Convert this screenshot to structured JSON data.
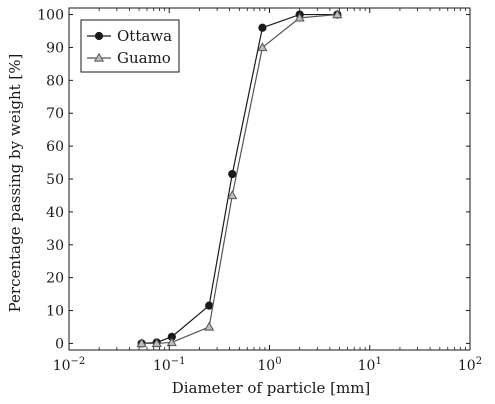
{
  "chart_data": {
    "type": "line",
    "xlabel": "Diameter of particle [mm]",
    "ylabel": "Percentage passing by weight [%]",
    "xscale": "log",
    "xlim": [
      0.01,
      100
    ],
    "ylim": [
      -2,
      102
    ],
    "x_ticks": [
      {
        "value": 0.01,
        "base": "10",
        "exp": "−2"
      },
      {
        "value": 0.1,
        "base": "10",
        "exp": "−1"
      },
      {
        "value": 1,
        "base": "10",
        "exp": "0"
      },
      {
        "value": 10,
        "base": "10",
        "exp": "1"
      },
      {
        "value": 100,
        "base": "10",
        "exp": "2"
      }
    ],
    "y_ticks": [
      "0",
      "10",
      "20",
      "30",
      "40",
      "50",
      "60",
      "70",
      "80",
      "90",
      "100"
    ],
    "legend_position": "top-left",
    "grid": false,
    "series": [
      {
        "name": "Ottawa",
        "marker": "circle",
        "color": "#1a1a1a",
        "x": [
          0.053,
          0.075,
          0.106,
          0.25,
          0.425,
          0.85,
          2.0,
          4.75
        ],
        "y": [
          0,
          0.3,
          2,
          11.5,
          51.5,
          96,
          100,
          100
        ]
      },
      {
        "name": "Guamo",
        "marker": "triangle",
        "color": "#555555",
        "x": [
          0.053,
          0.075,
          0.106,
          0.25,
          0.425,
          0.85,
          2.0,
          4.75
        ],
        "y": [
          0,
          0,
          0.3,
          5,
          45,
          90,
          99,
          100
        ]
      }
    ]
  }
}
